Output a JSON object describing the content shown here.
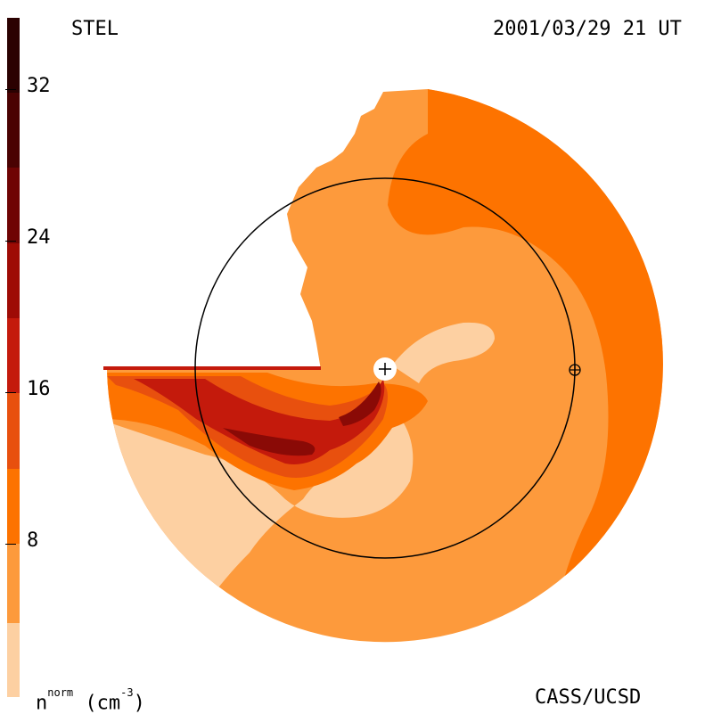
{
  "header": {
    "left_label": "STEL",
    "right_label": "2001/03/29 21 UT"
  },
  "footer": {
    "units_base": "n",
    "units_sup": "norm",
    "units_paren": "(cm",
    "units_exp": "-3",
    "units_close": ")",
    "credit": "CASS/UCSD"
  },
  "colorbar": {
    "ticks": [
      "8",
      "16",
      "24",
      "32"
    ],
    "colors": [
      "#fdd0a2",
      "#fd9a3c",
      "#fd7300",
      "#e8500e",
      "#c41a0c",
      "#9e0b05",
      "#6f0404",
      "#4a0202",
      "#2b0101"
    ]
  },
  "palette": {
    "level1": "#fdd0a2",
    "level2": "#fd9a3c",
    "level3": "#fd7300",
    "level4": "#e8500e",
    "level5": "#c41a0c",
    "level6": "#8a0a06"
  }
}
